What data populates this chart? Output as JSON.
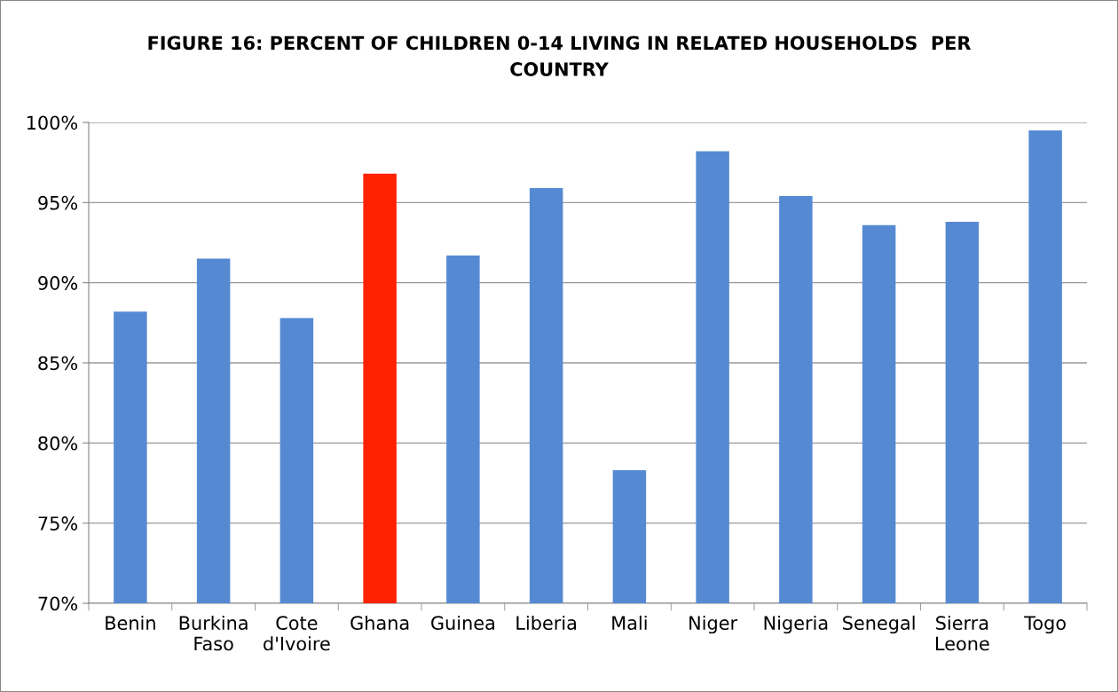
{
  "chart_data": {
    "type": "bar",
    "title": "FIGURE 16: PERCENT OF CHILDREN 0-14 LIVING IN RELATED HOUSEHOLDS  PER\nCOUNTRY",
    "categories": [
      "Benin",
      "Burkina\nFaso",
      "Cote\nd'Ivoire",
      "Ghana",
      "Guinea",
      "Liberia",
      "Mali",
      "Niger",
      "Nigeria",
      "Senegal",
      "Sierra\nLeone",
      "Togo"
    ],
    "values": [
      88.2,
      91.5,
      87.8,
      96.8,
      91.7,
      95.9,
      78.3,
      98.2,
      95.4,
      93.6,
      93.8,
      99.5
    ],
    "colors": [
      "#558ad3",
      "#558ad3",
      "#558ad3",
      "#ff2200",
      "#558ad3",
      "#558ad3",
      "#558ad3",
      "#558ad3",
      "#558ad3",
      "#558ad3",
      "#558ad3",
      "#558ad3"
    ],
    "ylim": [
      70,
      100
    ],
    "yticks": [
      {
        "value": 70,
        "label": "70%"
      },
      {
        "value": 75,
        "label": "75%"
      },
      {
        "value": 80,
        "label": "80%"
      },
      {
        "value": 85,
        "label": "85%"
      },
      {
        "value": 90,
        "label": "90%"
      },
      {
        "value": 95,
        "label": "95%"
      },
      {
        "value": 100,
        "label": "100%"
      }
    ],
    "grid": "y",
    "legend": false
  }
}
